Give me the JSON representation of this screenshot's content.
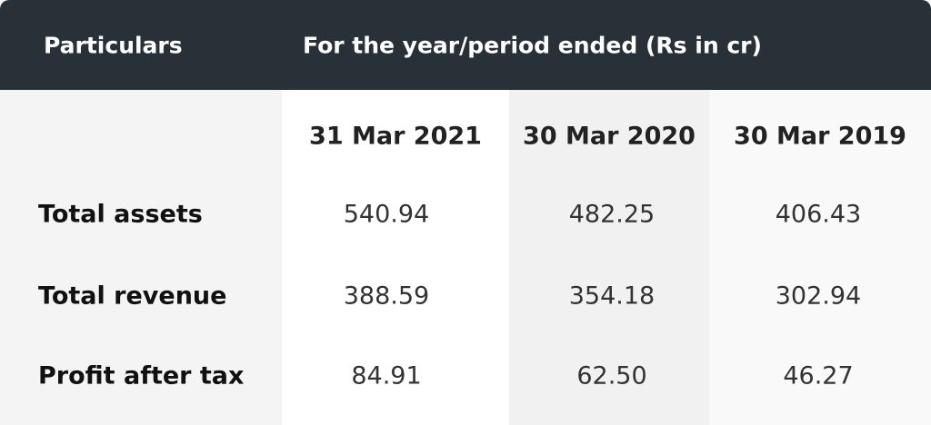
{
  "header": {
    "particulars": "Particulars",
    "period": "For the year/period ended (Rs in cr)"
  },
  "table": {
    "columns": [
      "31 Mar 2021",
      "30 Mar 2020",
      "30 Mar 2019"
    ],
    "rows": [
      [
        "Total assets",
        "540.94",
        "482.25",
        "406.43"
      ],
      [
        "Total revenue",
        "388.59",
        "354.18",
        "302.94"
      ],
      [
        "Profit after tax",
        "84.91",
        "62.50",
        "46.27"
      ]
    ]
  }
}
